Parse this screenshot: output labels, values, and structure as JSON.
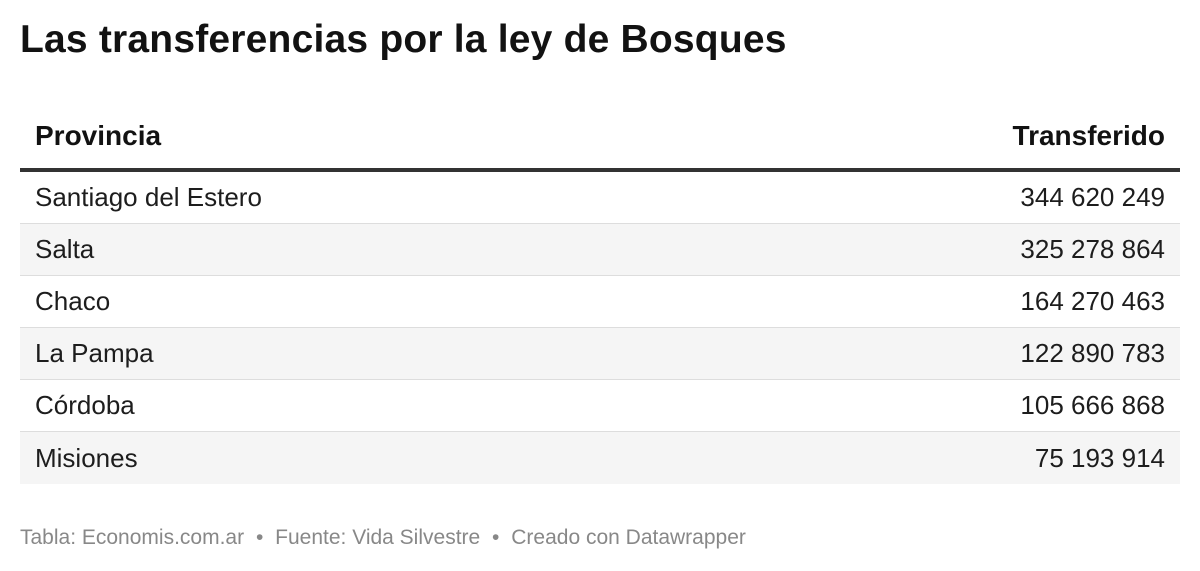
{
  "title": "Las transferencias por la ley de Bosques",
  "chart_data": {
    "type": "table",
    "title": "Las transferencias por la ley de Bosques",
    "columns": [
      "Provincia",
      "Transferido"
    ],
    "rows": [
      {
        "provincia": "Santiago del Estero",
        "transferido": "344 620 249"
      },
      {
        "provincia": "Salta",
        "transferido": "325 278 864"
      },
      {
        "provincia": "Chaco",
        "transferido": "164 270 463"
      },
      {
        "provincia": "La Pampa",
        "transferido": "122 890 783"
      },
      {
        "provincia": "Córdoba",
        "transferido": "105 666 868"
      },
      {
        "provincia": "Misiones",
        "transferido": "75 193 914"
      }
    ],
    "values": [
      344620249,
      325278864,
      164270463,
      122890783,
      105666868,
      75193914
    ]
  },
  "footer": {
    "table_credit": "Tabla: Economis.com.ar",
    "source": "Fuente: Vida Silvestre",
    "created": "Creado con Datawrapper",
    "separator": "•"
  },
  "colors": {
    "header_rule": "#333333",
    "stripe": "#f5f5f5",
    "footer_text": "#888888"
  }
}
